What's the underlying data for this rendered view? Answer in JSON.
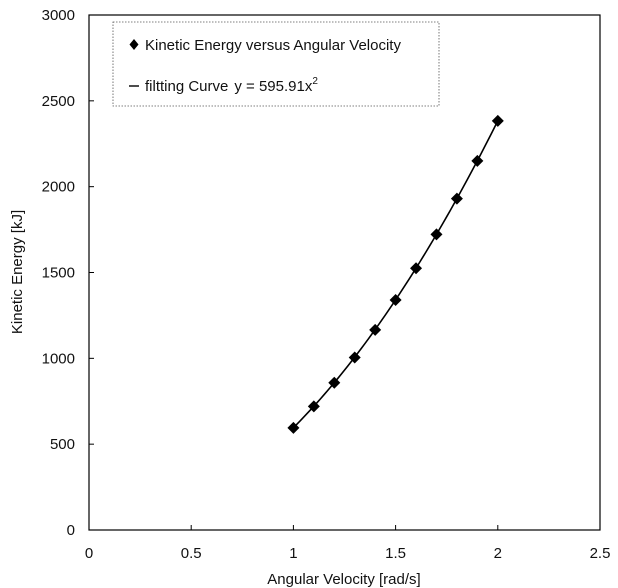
{
  "chart_data": {
    "type": "scatter",
    "xlabel": "Angular Velocity [rad/s]",
    "ylabel": "Kinetic Energy [kJ]",
    "xlim": [
      0,
      2.5
    ],
    "ylim": [
      0,
      3000
    ],
    "x_ticks": [
      "0",
      "0.5",
      "1",
      "1.5",
      "2",
      "2.5"
    ],
    "y_ticks": [
      "0",
      "500",
      "1000",
      "1500",
      "2000",
      "2500",
      "3000"
    ],
    "grid": false,
    "legend_position": "top-left",
    "series": [
      {
        "name": "Kinetic Energy versus Angular Velocity",
        "marker": "diamond",
        "color": "#000000",
        "x": [
          1.0,
          1.1,
          1.2,
          1.3,
          1.4,
          1.5,
          1.6,
          1.7,
          1.8,
          1.9,
          2.0
        ],
        "y": [
          595,
          720,
          858,
          1005,
          1166,
          1340,
          1525,
          1722,
          1930,
          2150,
          2383
        ]
      },
      {
        "name": "filtting Curve",
        "equation_prefix": "y = 595.91x",
        "equation_exponent": "2",
        "coefficient": 595.91,
        "x_range": [
          1.0,
          2.0
        ],
        "color": "#000000",
        "style": "line"
      }
    ]
  }
}
